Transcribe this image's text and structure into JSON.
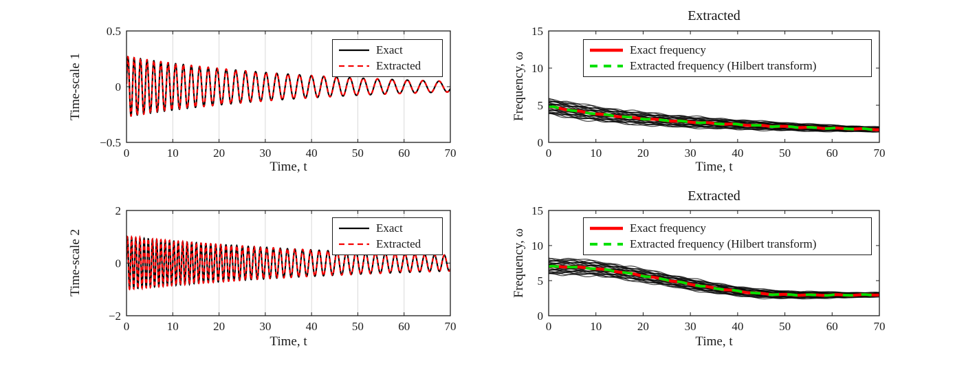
{
  "figure": {
    "background": "#ffffff",
    "axis_color": "#1a1a1a",
    "grid_color": "#d9d9d9"
  },
  "chart_data": [
    {
      "type": "line",
      "panel": "top-left",
      "title": "",
      "xlabel": "Time, t",
      "ylabel": "Time-scale 1",
      "xlim": [
        0,
        70
      ],
      "ylim": [
        -0.5,
        0.5
      ],
      "xticks": [
        0,
        10,
        20,
        30,
        40,
        50,
        60,
        70
      ],
      "xtick_labels": [
        "0",
        "10",
        "20",
        "30",
        "40",
        "50",
        "60",
        "70"
      ],
      "yticks": [
        0.5,
        0,
        -0.5
      ],
      "ytick_labels": [
        "0.5",
        "0",
        "−0.5"
      ],
      "grid": true,
      "legend_position": "top-right",
      "series": [
        {
          "name": "Exact",
          "color": "#000000",
          "style": "solid",
          "width": 2.1
        },
        {
          "name": "Extracted",
          "color": "#f40000",
          "style": "dashed",
          "width": 2.3
        }
      ],
      "signal": {
        "description": "decaying oscillation, both series overlap",
        "amplitude_t0": 0.27,
        "decay_tau": 40,
        "freq_t": [
          0,
          5,
          10,
          15,
          20,
          25,
          30,
          35,
          40,
          45,
          50,
          55,
          60,
          65,
          70
        ],
        "freq_values": [
          4.8,
          4.3,
          3.85,
          3.5,
          3.2,
          2.95,
          2.75,
          2.55,
          2.4,
          2.25,
          2.12,
          2.0,
          1.9,
          1.82,
          1.75
        ]
      }
    },
    {
      "type": "line",
      "panel": "top-right",
      "title": "Extracted",
      "xlabel": "Time, t",
      "ylabel": "Frequency, ω",
      "xlim": [
        0,
        70
      ],
      "ylim": [
        0,
        15
      ],
      "xticks": [
        0,
        10,
        20,
        30,
        40,
        50,
        60,
        70
      ],
      "xtick_labels": [
        "0",
        "10",
        "20",
        "30",
        "40",
        "50",
        "60",
        "70"
      ],
      "yticks": [
        0,
        5,
        10,
        15
      ],
      "ytick_labels": [
        "0",
        "5",
        "10",
        "15"
      ],
      "grid": false,
      "legend_position": "top-left",
      "series": [
        {
          "name": "Exact frequency",
          "color": "#ff0000",
          "style": "solid",
          "width": 4.2
        },
        {
          "name": "Extracted frequency (Hilbert transform)",
          "color": "#00e000",
          "style": "dashed",
          "width": 3.8
        }
      ],
      "t": [
        0,
        5,
        10,
        15,
        20,
        25,
        30,
        35,
        40,
        45,
        50,
        55,
        60,
        65,
        70
      ],
      "exact_frequency": [
        4.8,
        4.3,
        3.85,
        3.5,
        3.2,
        2.95,
        2.75,
        2.55,
        2.4,
        2.25,
        2.12,
        2.0,
        1.9,
        1.82,
        1.75
      ],
      "extracted_frequency": [
        4.8,
        4.3,
        3.85,
        3.5,
        3.2,
        2.95,
        2.75,
        2.55,
        2.4,
        2.25,
        2.12,
        2.0,
        1.9,
        1.82,
        1.75
      ],
      "ensemble": {
        "count": 27,
        "halfwidth_start": 1.05,
        "halfwidth_end": 0.32,
        "color": "#000000"
      }
    },
    {
      "type": "line",
      "panel": "bottom-left",
      "title": "",
      "xlabel": "Time, t",
      "ylabel": "Time-scale 2",
      "xlim": [
        0,
        70
      ],
      "ylim": [
        -2,
        2
      ],
      "xticks": [
        0,
        10,
        20,
        30,
        40,
        50,
        60,
        70
      ],
      "xtick_labels": [
        "0",
        "10",
        "20",
        "30",
        "40",
        "50",
        "60",
        "70"
      ],
      "yticks": [
        2,
        0,
        -2
      ],
      "ytick_labels": [
        "2",
        "0",
        "−2"
      ],
      "grid": true,
      "legend_position": "top-right",
      "series": [
        {
          "name": "Exact",
          "color": "#000000",
          "style": "solid",
          "width": 2.1
        },
        {
          "name": "Extracted",
          "color": "#f40000",
          "style": "dashed",
          "width": 2.3
        }
      ],
      "signal": {
        "description": "decaying oscillation, both series overlap",
        "amplitude_t0": 1.0,
        "decay_tau": 58,
        "freq_t": [
          0,
          5,
          10,
          15,
          20,
          25,
          30,
          35,
          40,
          45,
          50,
          55,
          60,
          65,
          70
        ],
        "freq_values": [
          7.0,
          6.95,
          6.7,
          6.25,
          5.7,
          5.1,
          4.5,
          3.95,
          3.5,
          3.15,
          3.0,
          2.95,
          2.95,
          2.95,
          3.0
        ]
      }
    },
    {
      "type": "line",
      "panel": "bottom-right",
      "title": "Extracted",
      "xlabel": "Time, t",
      "ylabel": "Frequency, ω",
      "xlim": [
        0,
        70
      ],
      "ylim": [
        0,
        15
      ],
      "xticks": [
        0,
        10,
        20,
        30,
        40,
        50,
        60,
        70
      ],
      "xtick_labels": [
        "0",
        "10",
        "20",
        "30",
        "40",
        "50",
        "60",
        "70"
      ],
      "yticks": [
        0,
        5,
        10,
        15
      ],
      "ytick_labels": [
        "0",
        "5",
        "10",
        "15"
      ],
      "grid": false,
      "legend_position": "top-left",
      "series": [
        {
          "name": "Exact frequency",
          "color": "#ff0000",
          "style": "solid",
          "width": 4.2
        },
        {
          "name": "Extracted frequency (Hilbert transform)",
          "color": "#00e000",
          "style": "dashed",
          "width": 3.8
        }
      ],
      "t": [
        0,
        5,
        10,
        15,
        20,
        25,
        30,
        35,
        40,
        45,
        50,
        55,
        60,
        65,
        70
      ],
      "exact_frequency": [
        7.0,
        6.95,
        6.7,
        6.25,
        5.7,
        5.1,
        4.5,
        3.95,
        3.5,
        3.15,
        3.0,
        2.95,
        2.95,
        2.95,
        3.0
      ],
      "extracted_frequency": [
        7.0,
        6.95,
        6.7,
        6.25,
        5.7,
        5.1,
        4.5,
        3.95,
        3.5,
        3.15,
        3.0,
        2.95,
        2.95,
        2.95,
        3.0
      ],
      "ensemble": {
        "count": 27,
        "halfwidth_start": 1.15,
        "halfwidth_end": 0.3,
        "color": "#000000"
      }
    }
  ]
}
